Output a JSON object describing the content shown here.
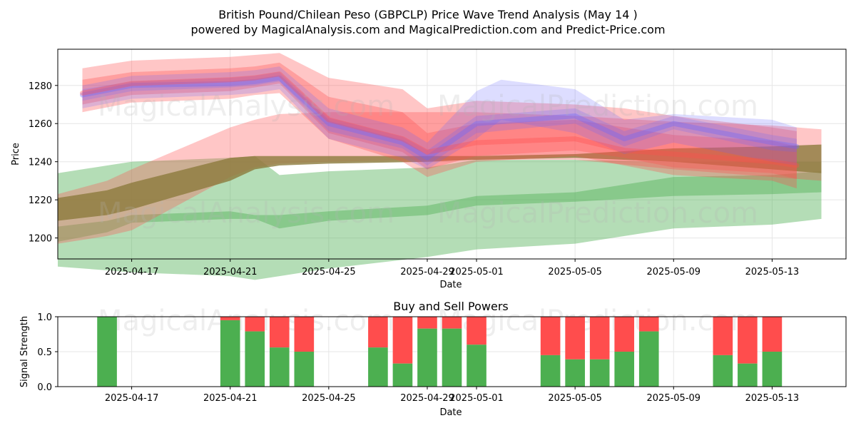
{
  "title_line1": "British Pound/Chilean Peso (GBPCLP) Price Wave Trend Analysis (May 14 )",
  "title_line2": "powered by MagicalAnalysis.com and MagicalPrediction.com and Predict-Price.com",
  "watermarks": [
    "MagicalAnalysis.com",
    "MagicalPrediction.com"
  ],
  "colors": {
    "green": "#4caf50",
    "red": "#ff4d4d",
    "blue": "#6666ff",
    "brown": "#8c7a3c",
    "grid": "#e6e6e6"
  },
  "chart_data": [
    {
      "type": "area",
      "ylabel": "Price",
      "xlabel": "Date",
      "ylim": [
        1189,
        1299
      ],
      "xlim": [
        "2025-04-14",
        "2025-05-16"
      ],
      "x_ticks": [
        "2025-04-17",
        "2025-04-21",
        "2025-04-25",
        "2025-04-29",
        "2025-05-01",
        "2025-05-05",
        "2025-05-09",
        "2025-05-13"
      ],
      "y_ticks": [
        1200,
        1220,
        1240,
        1260,
        1280
      ],
      "grid": true,
      "bands": [
        {
          "color": "green",
          "x": [
            "2025-04-14",
            "2025-04-16",
            "2025-04-17",
            "2025-04-21",
            "2025-04-22",
            "2025-04-23",
            "2025-04-25",
            "2025-04-29",
            "2025-05-01",
            "2025-05-05",
            "2025-05-09",
            "2025-05-13",
            "2025-05-15"
          ],
          "low": [
            1185,
            1183,
            1182,
            1180,
            1178,
            1180,
            1184,
            1190,
            1194,
            1197,
            1205,
            1207,
            1210
          ],
          "high": [
            1234,
            1238,
            1240,
            1242,
            1243,
            1233,
            1235,
            1237,
            1241,
            1241,
            1240,
            1240,
            1240
          ]
        },
        {
          "color": "green",
          "x": [
            "2025-04-14",
            "2025-04-16",
            "2025-04-17",
            "2025-04-21",
            "2025-04-22",
            "2025-04-23",
            "2025-04-25",
            "2025-04-29",
            "2025-05-01",
            "2025-05-05",
            "2025-05-09",
            "2025-05-13",
            "2025-05-15"
          ],
          "low": [
            1198,
            1203,
            1208,
            1210,
            1210,
            1205,
            1209,
            1212,
            1217,
            1219,
            1222,
            1223,
            1224
          ],
          "high": [
            1206,
            1209,
            1212,
            1214,
            1212,
            1212,
            1214,
            1217,
            1222,
            1224,
            1232,
            1233,
            1235
          ]
        },
        {
          "color": "red",
          "x": [
            "2025-04-14",
            "2025-04-16",
            "2025-04-17",
            "2025-04-21",
            "2025-04-22",
            "2025-04-23",
            "2025-04-25",
            "2025-04-29",
            "2025-05-01",
            "2025-05-05",
            "2025-05-09",
            "2025-05-13",
            "2025-05-15"
          ],
          "low": [
            1197,
            1201,
            1204,
            1232,
            1237,
            1239,
            1240,
            1241,
            1241,
            1241,
            1236,
            1232,
            1230
          ],
          "high": [
            1223,
            1230,
            1236,
            1258,
            1262,
            1265,
            1266,
            1266,
            1266,
            1264,
            1261,
            1259,
            1257
          ]
        },
        {
          "color": "brown",
          "x": [
            "2025-04-14",
            "2025-04-16",
            "2025-04-17",
            "2025-04-21",
            "2025-04-22",
            "2025-04-23",
            "2025-04-25",
            "2025-04-29",
            "2025-05-01",
            "2025-05-05",
            "2025-05-09",
            "2025-05-13",
            "2025-05-15"
          ],
          "low": [
            1209,
            1212,
            1215,
            1230,
            1236,
            1238,
            1239,
            1240,
            1241,
            1242,
            1240,
            1236,
            1234
          ],
          "high": [
            1221,
            1225,
            1229,
            1242,
            1243,
            1243,
            1243,
            1243,
            1243,
            1244,
            1247,
            1248,
            1249
          ]
        },
        {
          "color": "red",
          "x": [
            "2025-04-15",
            "2025-04-17",
            "2025-04-21",
            "2025-04-22",
            "2025-04-23",
            "2025-04-25",
            "2025-04-28",
            "2025-04-29",
            "2025-05-01",
            "2025-05-05",
            "2025-05-07",
            "2025-05-09",
            "2025-05-13",
            "2025-05-14"
          ],
          "low": [
            1266,
            1271,
            1273,
            1275,
            1276,
            1252,
            1240,
            1232,
            1240,
            1243,
            1238,
            1233,
            1230,
            1226
          ],
          "high": [
            1289,
            1293,
            1295,
            1296,
            1297,
            1284,
            1278,
            1268,
            1272,
            1270,
            1268,
            1264,
            1258,
            1256
          ]
        },
        {
          "color": "red",
          "x": [
            "2025-04-15",
            "2025-04-17",
            "2025-04-21",
            "2025-04-22",
            "2025-04-23",
            "2025-04-25",
            "2025-04-28",
            "2025-04-29",
            "2025-05-01",
            "2025-05-05",
            "2025-05-07",
            "2025-05-09",
            "2025-05-13",
            "2025-05-14"
          ],
          "low": [
            1270,
            1275,
            1277,
            1279,
            1281,
            1255,
            1245,
            1236,
            1243,
            1246,
            1242,
            1237,
            1234,
            1231
          ],
          "high": [
            1283,
            1287,
            1289,
            1290,
            1292,
            1274,
            1266,
            1255,
            1260,
            1262,
            1258,
            1254,
            1251,
            1248
          ]
        },
        {
          "color": "blue",
          "x": [
            "2025-04-15",
            "2025-04-17",
            "2025-04-21",
            "2025-04-22",
            "2025-04-23",
            "2025-04-25",
            "2025-04-28",
            "2025-04-29",
            "2025-05-01",
            "2025-05-02",
            "2025-05-05",
            "2025-05-07",
            "2025-05-09",
            "2025-05-13",
            "2025-05-14"
          ],
          "low": [
            1268,
            1273,
            1275,
            1276,
            1278,
            1252,
            1242,
            1236,
            1252,
            1262,
            1255,
            1244,
            1250,
            1240,
            1238
          ],
          "high": [
            1280,
            1285,
            1287,
            1288,
            1290,
            1268,
            1258,
            1250,
            1277,
            1283,
            1278,
            1262,
            1265,
            1262,
            1258
          ]
        },
        {
          "color": "blue",
          "x": [
            "2025-04-15",
            "2025-04-17",
            "2025-04-21",
            "2025-04-22",
            "2025-04-23",
            "2025-04-25",
            "2025-04-28",
            "2025-04-29",
            "2025-05-01",
            "2025-05-05",
            "2025-05-07",
            "2025-05-09",
            "2025-05-13",
            "2025-05-14"
          ],
          "low": [
            1272,
            1277,
            1279,
            1280,
            1282,
            1256,
            1247,
            1238,
            1255,
            1260,
            1248,
            1257,
            1246,
            1245
          ],
          "high": [
            1278,
            1282,
            1284,
            1285,
            1287,
            1263,
            1253,
            1246,
            1264,
            1268,
            1256,
            1264,
            1254,
            1252
          ]
        }
      ],
      "lines": [
        {
          "color": "blue",
          "x": [
            "2025-04-15",
            "2025-04-17",
            "2025-04-21",
            "2025-04-22",
            "2025-04-23",
            "2025-04-25",
            "2025-04-28",
            "2025-04-29",
            "2025-05-01",
            "2025-05-05",
            "2025-05-07",
            "2025-05-09",
            "2025-05-13",
            "2025-05-14"
          ],
          "y": [
            1275,
            1280,
            1281,
            1282,
            1284,
            1260,
            1250,
            1242,
            1260,
            1264,
            1252,
            1260,
            1250,
            1248
          ]
        },
        {
          "color": "red",
          "x": [
            "2025-04-15",
            "2025-04-17",
            "2025-04-21",
            "2025-04-22",
            "2025-04-23",
            "2025-04-25",
            "2025-04-28",
            "2025-04-29",
            "2025-05-01",
            "2025-05-05",
            "2025-05-07",
            "2025-05-09",
            "2025-05-13",
            "2025-05-14"
          ],
          "y": [
            1276,
            1281,
            1283,
            1284,
            1286,
            1262,
            1252,
            1245,
            1250,
            1252,
            1246,
            1244,
            1240,
            1238
          ]
        }
      ]
    },
    {
      "type": "bar",
      "title": "Buy and Sell Powers",
      "ylabel": "Signal Strength",
      "xlabel": "Date",
      "ylim": [
        0,
        1
      ],
      "xlim": [
        "2025-04-14",
        "2025-05-16"
      ],
      "x_ticks": [
        "2025-04-17",
        "2025-04-21",
        "2025-04-25",
        "2025-04-29",
        "2025-05-01",
        "2025-05-05",
        "2025-05-09",
        "2025-05-13"
      ],
      "y_ticks": [
        "0.0",
        "0.5",
        "1.0"
      ],
      "grid": true,
      "series": [
        {
          "name": "buy",
          "color": "green"
        },
        {
          "name": "sell",
          "color": "red"
        }
      ],
      "categories": [
        "2025-04-16",
        "2025-04-21",
        "2025-04-22",
        "2025-04-23",
        "2025-04-24",
        "2025-04-27",
        "2025-04-28",
        "2025-04-29",
        "2025-04-30",
        "2025-05-01",
        "2025-05-04",
        "2025-05-05",
        "2025-05-06",
        "2025-05-07",
        "2025-05-08",
        "2025-05-11",
        "2025-05-12",
        "2025-05-13"
      ],
      "buy": [
        1.0,
        0.95,
        0.79,
        0.56,
        0.5,
        0.56,
        0.33,
        0.83,
        0.83,
        0.6,
        0.45,
        0.39,
        0.39,
        0.5,
        0.79,
        0.45,
        0.33,
        0.5
      ]
    }
  ]
}
